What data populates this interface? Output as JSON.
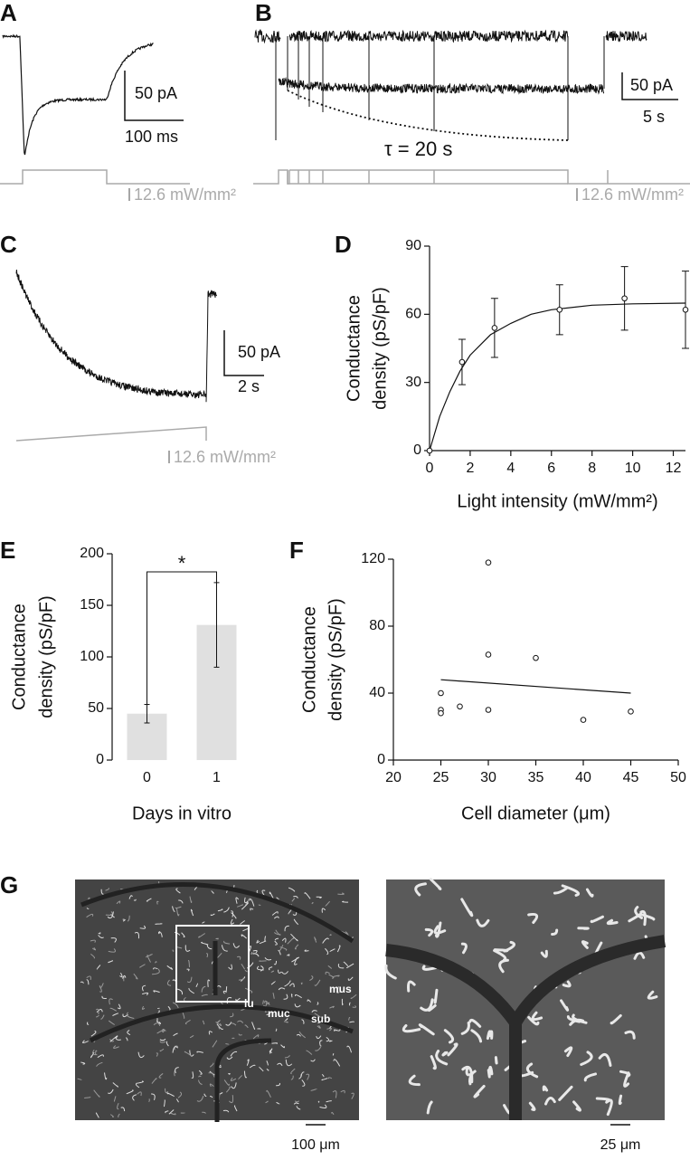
{
  "panels": {
    "A": {
      "letter": "A",
      "scale_current": "50 pA",
      "scale_time": "100 ms",
      "light": "12.6 mW/mm²"
    },
    "B": {
      "letter": "B",
      "scale_current": "50 pA",
      "scale_time": "5 s",
      "tau": "τ = 20 s",
      "light": "12.6 mW/mm²"
    },
    "C": {
      "letter": "C",
      "scale_current": "50 pA",
      "scale_time": "2 s",
      "light": "12.6 mW/mm²"
    },
    "D": {
      "letter": "D"
    },
    "E": {
      "letter": "E"
    },
    "F": {
      "letter": "F"
    },
    "G": {
      "letter": "G",
      "regions": [
        "lu",
        "muc",
        "sub",
        "mus"
      ],
      "scale_left": "100 μm",
      "scale_right": "25 μm"
    }
  },
  "chart_data": [
    {
      "type": "scatter",
      "x": [
        0,
        1.6,
        3.2,
        6.4,
        9.6,
        12.6
      ],
      "values": [
        0,
        39,
        54,
        62,
        67,
        62
      ],
      "errors": [
        0,
        10,
        13,
        11,
        14,
        17
      ],
      "fit": {
        "x": [
          0,
          0.5,
          1,
          1.5,
          2,
          3,
          4,
          5,
          6,
          8,
          10,
          12.6
        ],
        "values": [
          0,
          15,
          26,
          35,
          42,
          51,
          56,
          60,
          62,
          64,
          64.6,
          64.9
        ]
      },
      "xlim": [
        0,
        12.6
      ],
      "xticks": [
        0,
        2,
        4,
        6,
        8,
        10,
        12
      ],
      "ylim": [
        0,
        90
      ],
      "yticks": [
        0,
        30,
        60,
        90
      ],
      "xlabel": "Light intensity (mW/mm²)",
      "ylabel": [
        "Conductance",
        "density (pS/pF)"
      ],
      "color": "#111111"
    },
    {
      "type": "bar",
      "categories": [
        "0",
        "1"
      ],
      "values": [
        45,
        131
      ],
      "errors": [
        9,
        41
      ],
      "ylim": [
        0,
        200
      ],
      "yticks": [
        0,
        50,
        100,
        150,
        200
      ],
      "xlabel": "Days in vitro",
      "ylabel": [
        "Conductance",
        "density (pS/pF)"
      ],
      "annotation": "*",
      "color": "#e0e0e0"
    },
    {
      "type": "scatter",
      "x": [
        25,
        25,
        25,
        27,
        30,
        30,
        30,
        35,
        40,
        45
      ],
      "values": [
        40,
        30,
        28,
        32,
        118,
        63,
        30,
        61,
        24,
        29
      ],
      "trend": {
        "x": [
          25,
          45
        ],
        "values": [
          48,
          40
        ]
      },
      "xlim": [
        20,
        50
      ],
      "xticks": [
        20,
        25,
        30,
        35,
        40,
        45,
        50
      ],
      "ylim": [
        0,
        120
      ],
      "yticks": [
        0,
        40,
        80,
        120
      ],
      "xlabel": "Cell diameter (μm)",
      "ylabel": [
        "Conductance",
        "density (pS/pF)"
      ],
      "color": "#111111"
    }
  ]
}
